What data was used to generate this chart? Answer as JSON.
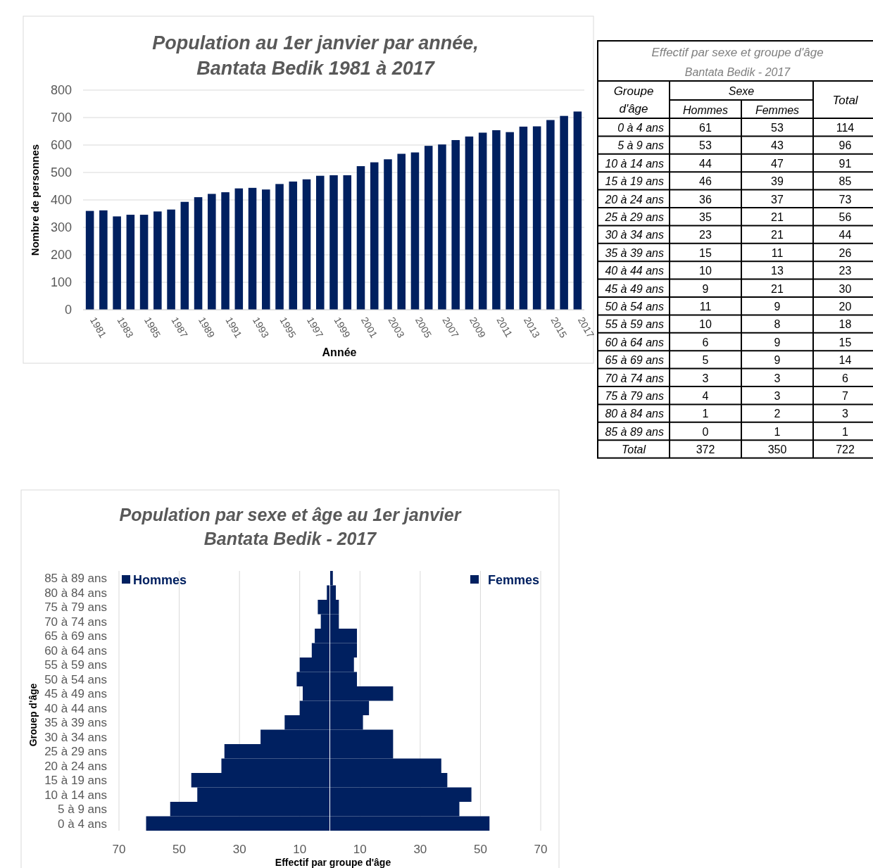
{
  "chart_data": [
    {
      "type": "bar",
      "title": "Population au 1er janvier par année,",
      "subtitle": "Bantata Bedik 1981 à 2017",
      "xlabel": "Année",
      "ylabel": "Nombre de personnes",
      "categories": [
        "1981",
        null,
        "1983",
        null,
        "1985",
        null,
        "1987",
        null,
        "1989",
        null,
        "1991",
        null,
        "1993",
        null,
        "1995",
        null,
        "1997",
        null,
        "1999",
        null,
        "2001",
        null,
        "2003",
        null,
        "2005",
        null,
        "2007",
        null,
        "2009",
        null,
        "2011",
        null,
        "2013",
        null,
        "2015",
        null,
        "2017"
      ],
      "series": [
        {
          "color": "#002060",
          "values": [
            360,
            362,
            340,
            346,
            346,
            358,
            365,
            393,
            410,
            422,
            428,
            442,
            444,
            438,
            458,
            467,
            475,
            488,
            490,
            490,
            523,
            537,
            548,
            568,
            573,
            597,
            602,
            618,
            631,
            645,
            654,
            647,
            667,
            668,
            691,
            706,
            722
          ]
        }
      ],
      "ylim": [
        0,
        800
      ],
      "yticks": [
        0,
        100,
        200,
        300,
        400,
        500,
        600,
        700,
        800
      ],
      "grid": "y"
    },
    {
      "type": "other",
      "title": "Effectif par sexe et groupe d'âge",
      "subtitle": "Bantata Bedik - 2017",
      "legend_title": "Sexe",
      "annotations": [
        "Groupe d'âge",
        "Total"
      ],
      "categories": [
        "0 à 4 ans",
        "5 à 9 ans",
        "10 à 14 ans",
        "15 à 19 ans",
        "20 à 24 ans",
        "25 à 29 ans",
        "30 à 34 ans",
        "35 à 39 ans",
        "40 à 44 ans",
        "45 à 49 ans",
        "50 à 54 ans",
        "55 à 59 ans",
        "60 à 64 ans",
        "65 à 69 ans",
        "70 à 74 ans",
        "75 à 79 ans",
        "80 à 84 ans",
        "85 à 89 ans"
      ],
      "series": [
        {
          "name": "Hommes",
          "values": [
            61,
            53,
            44,
            46,
            36,
            35,
            23,
            15,
            10,
            9,
            11,
            10,
            6,
            5,
            3,
            4,
            1,
            0
          ]
        },
        {
          "name": "Femmes",
          "values": [
            53,
            43,
            47,
            39,
            37,
            21,
            21,
            11,
            13,
            21,
            9,
            8,
            9,
            9,
            3,
            3,
            2,
            1
          ]
        },
        {
          "name": "Total",
          "values": [
            114,
            96,
            91,
            85,
            73,
            56,
            44,
            26,
            23,
            30,
            20,
            18,
            15,
            14,
            6,
            7,
            3,
            1
          ]
        }
      ],
      "totals": [
        "372",
        "350",
        "722"
      ],
      "data_labels": true
    },
    {
      "type": "bar",
      "orientation": "horizontal",
      "stacked": true,
      "title": "Population par sexe et âge au 1er janvier",
      "subtitle": "Bantata Bedik - 2017",
      "xlabel": "Effectif par groupe d'âge",
      "ylabel": "Grouep d'âge",
      "categories": [
        "85 à 89 ans",
        "80 à 84 ans",
        "75 à 79 ans",
        "70 à 74 ans",
        "65 à 69 ans",
        "60 à 64 ans",
        "55 à 59 ans",
        "50 à 54 ans",
        "45 à 49 ans",
        "40 à 44 ans",
        "35 à 39 ans",
        "30 à 34 ans",
        "25 à 29 ans",
        "20 à 24 ans",
        "15 à 19 ans",
        "10 à 14 ans",
        "5 à 9 ans",
        "0 à 4 ans"
      ],
      "series": [
        {
          "name": "Hommes",
          "color": "#002060",
          "values": [
            0,
            -1,
            -4,
            -3,
            -5,
            -6,
            -10,
            -11,
            -9,
            -10,
            -15,
            -23,
            -35,
            -36,
            -46,
            -44,
            -53,
            -61
          ]
        },
        {
          "name": "Femmes",
          "color": "#002060",
          "values": [
            1,
            2,
            3,
            3,
            9,
            9,
            8,
            9,
            21,
            13,
            11,
            21,
            21,
            37,
            39,
            47,
            43,
            53
          ]
        }
      ],
      "xlim": [
        -70,
        70
      ],
      "xticks": [
        {
          "value": -70,
          "label": "70"
        },
        {
          "value": -50,
          "label": "50"
        },
        {
          "value": -30,
          "label": "30"
        },
        {
          "value": -10,
          "label": "10"
        },
        10,
        30,
        50,
        70
      ],
      "grid": "x",
      "legend": "top"
    }
  ]
}
